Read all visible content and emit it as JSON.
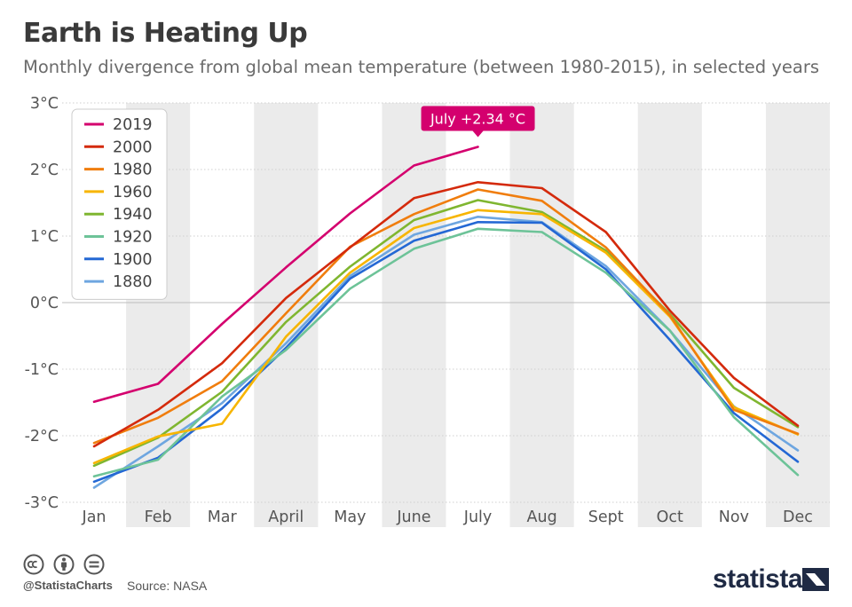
{
  "header": {
    "title": "Earth is Heating Up",
    "subtitle": "Monthly divergence from global mean temperature (between 1980-2015), in selected years"
  },
  "footer": {
    "handle": "@StatistaCharts",
    "source": "Source: NASA",
    "brand": "statista",
    "icons": [
      "cc-icon",
      "by-icon",
      "nd-icon"
    ]
  },
  "chart_data": {
    "type": "line",
    "categories": [
      "Jan",
      "Feb",
      "Mar",
      "April",
      "May",
      "June",
      "July",
      "Aug",
      "Sept",
      "Oct",
      "Nov",
      "Dec"
    ],
    "y_tick_labels": [
      "3°C",
      "2°C",
      "1°C",
      "0°C",
      "-1°C",
      "-2°C",
      "-3°C"
    ],
    "y_ticks": [
      3,
      2,
      1,
      0,
      -1,
      -2,
      -3
    ],
    "ylim": [
      -3,
      3
    ],
    "grid": true,
    "alternate_column_shading": true,
    "legend_position": "top-left",
    "annotation": {
      "text": "July +2.34 °C",
      "series": "2019",
      "category": "July",
      "value": 2.34,
      "color": "#d4006e"
    },
    "series": [
      {
        "name": "2019",
        "color": "#d4006e",
        "values": [
          -1.49,
          -1.22,
          -0.32,
          0.53,
          1.34,
          2.06,
          2.34,
          null,
          null,
          null,
          null,
          null
        ]
      },
      {
        "name": "2000",
        "color": "#d42a0c",
        "values": [
          -2.16,
          -1.61,
          -0.91,
          0.07,
          0.83,
          1.57,
          1.81,
          1.72,
          1.06,
          -0.12,
          -1.13,
          -1.85
        ]
      },
      {
        "name": "1980",
        "color": "#f07d0d",
        "values": [
          -2.11,
          -1.73,
          -1.18,
          -0.16,
          0.84,
          1.33,
          1.7,
          1.53,
          0.83,
          -0.19,
          -1.61,
          -1.97
        ]
      },
      {
        "name": "1960",
        "color": "#f7b500",
        "values": [
          -2.41,
          -2.01,
          -1.82,
          -0.51,
          0.45,
          1.12,
          1.39,
          1.33,
          0.75,
          -0.21,
          -1.57,
          -1.98
        ]
      },
      {
        "name": "1940",
        "color": "#7fb630",
        "values": [
          -2.45,
          -2.03,
          -1.34,
          -0.29,
          0.54,
          1.24,
          1.54,
          1.36,
          0.78,
          -0.17,
          -1.28,
          -1.87
        ]
      },
      {
        "name": "1920",
        "color": "#6dc398",
        "values": [
          -2.61,
          -2.36,
          -1.41,
          -0.71,
          0.21,
          0.81,
          1.11,
          1.06,
          0.45,
          -0.42,
          -1.72,
          -2.59
        ]
      },
      {
        "name": "1900",
        "color": "#2468d4",
        "values": [
          -2.69,
          -2.33,
          -1.59,
          -0.68,
          0.36,
          0.93,
          1.21,
          1.2,
          0.5,
          -0.56,
          -1.66,
          -2.39
        ]
      },
      {
        "name": "1880",
        "color": "#6ea6e0",
        "values": [
          -2.78,
          -2.16,
          -1.51,
          -0.61,
          0.4,
          1.02,
          1.29,
          1.21,
          0.55,
          -0.42,
          -1.56,
          -2.22
        ]
      }
    ]
  }
}
